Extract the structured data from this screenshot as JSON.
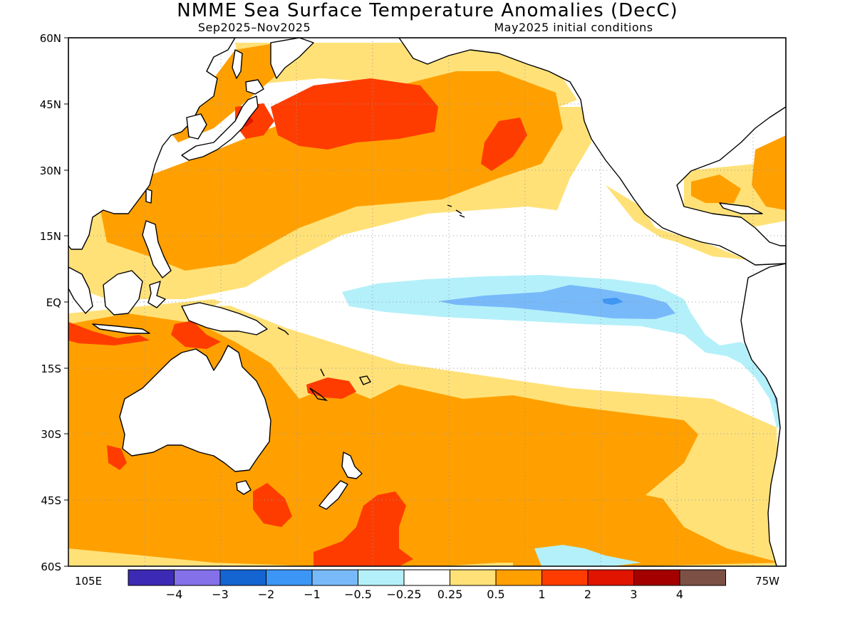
{
  "title": "NMME Sea Surface Temperature Anomalies (DecC)",
  "subtitle_left": "Sep2025–Nov2025",
  "subtitle_right": "May2025 initial conditions",
  "axes": {
    "lat_labels": [
      "60N",
      "45N",
      "30N",
      "15N",
      "EQ",
      "15S",
      "30S",
      "45S",
      "60S"
    ],
    "lon_left": "105E",
    "lon_right": "75W"
  },
  "colorbar": {
    "colors": [
      "#3c2ab5",
      "#8470e8",
      "#1464d2",
      "#3c96f5",
      "#78b9fa",
      "#b4f0fa",
      "#ffffff",
      "#ffe178",
      "#ffa000",
      "#ff3c00",
      "#e11400",
      "#a50000",
      "#7d5046"
    ],
    "labels": [
      "−4",
      "−3",
      "−2",
      "−1",
      "−0.5",
      "−0.25",
      "0.25",
      "0.5",
      "1",
      "2",
      "3",
      "4"
    ]
  },
  "colors": {
    "warm_light": "#ffe178",
    "warm_orange": "#ffa000",
    "warm_red": "#ff3c00",
    "warm_darkred": "#e11400",
    "cool_light": "#b4f0fa",
    "cool_mid": "#78b9fa",
    "cool_blue": "#3c96f5",
    "neutral": "#ffffff",
    "land_outline": "#000000",
    "grid": "#999999"
  }
}
